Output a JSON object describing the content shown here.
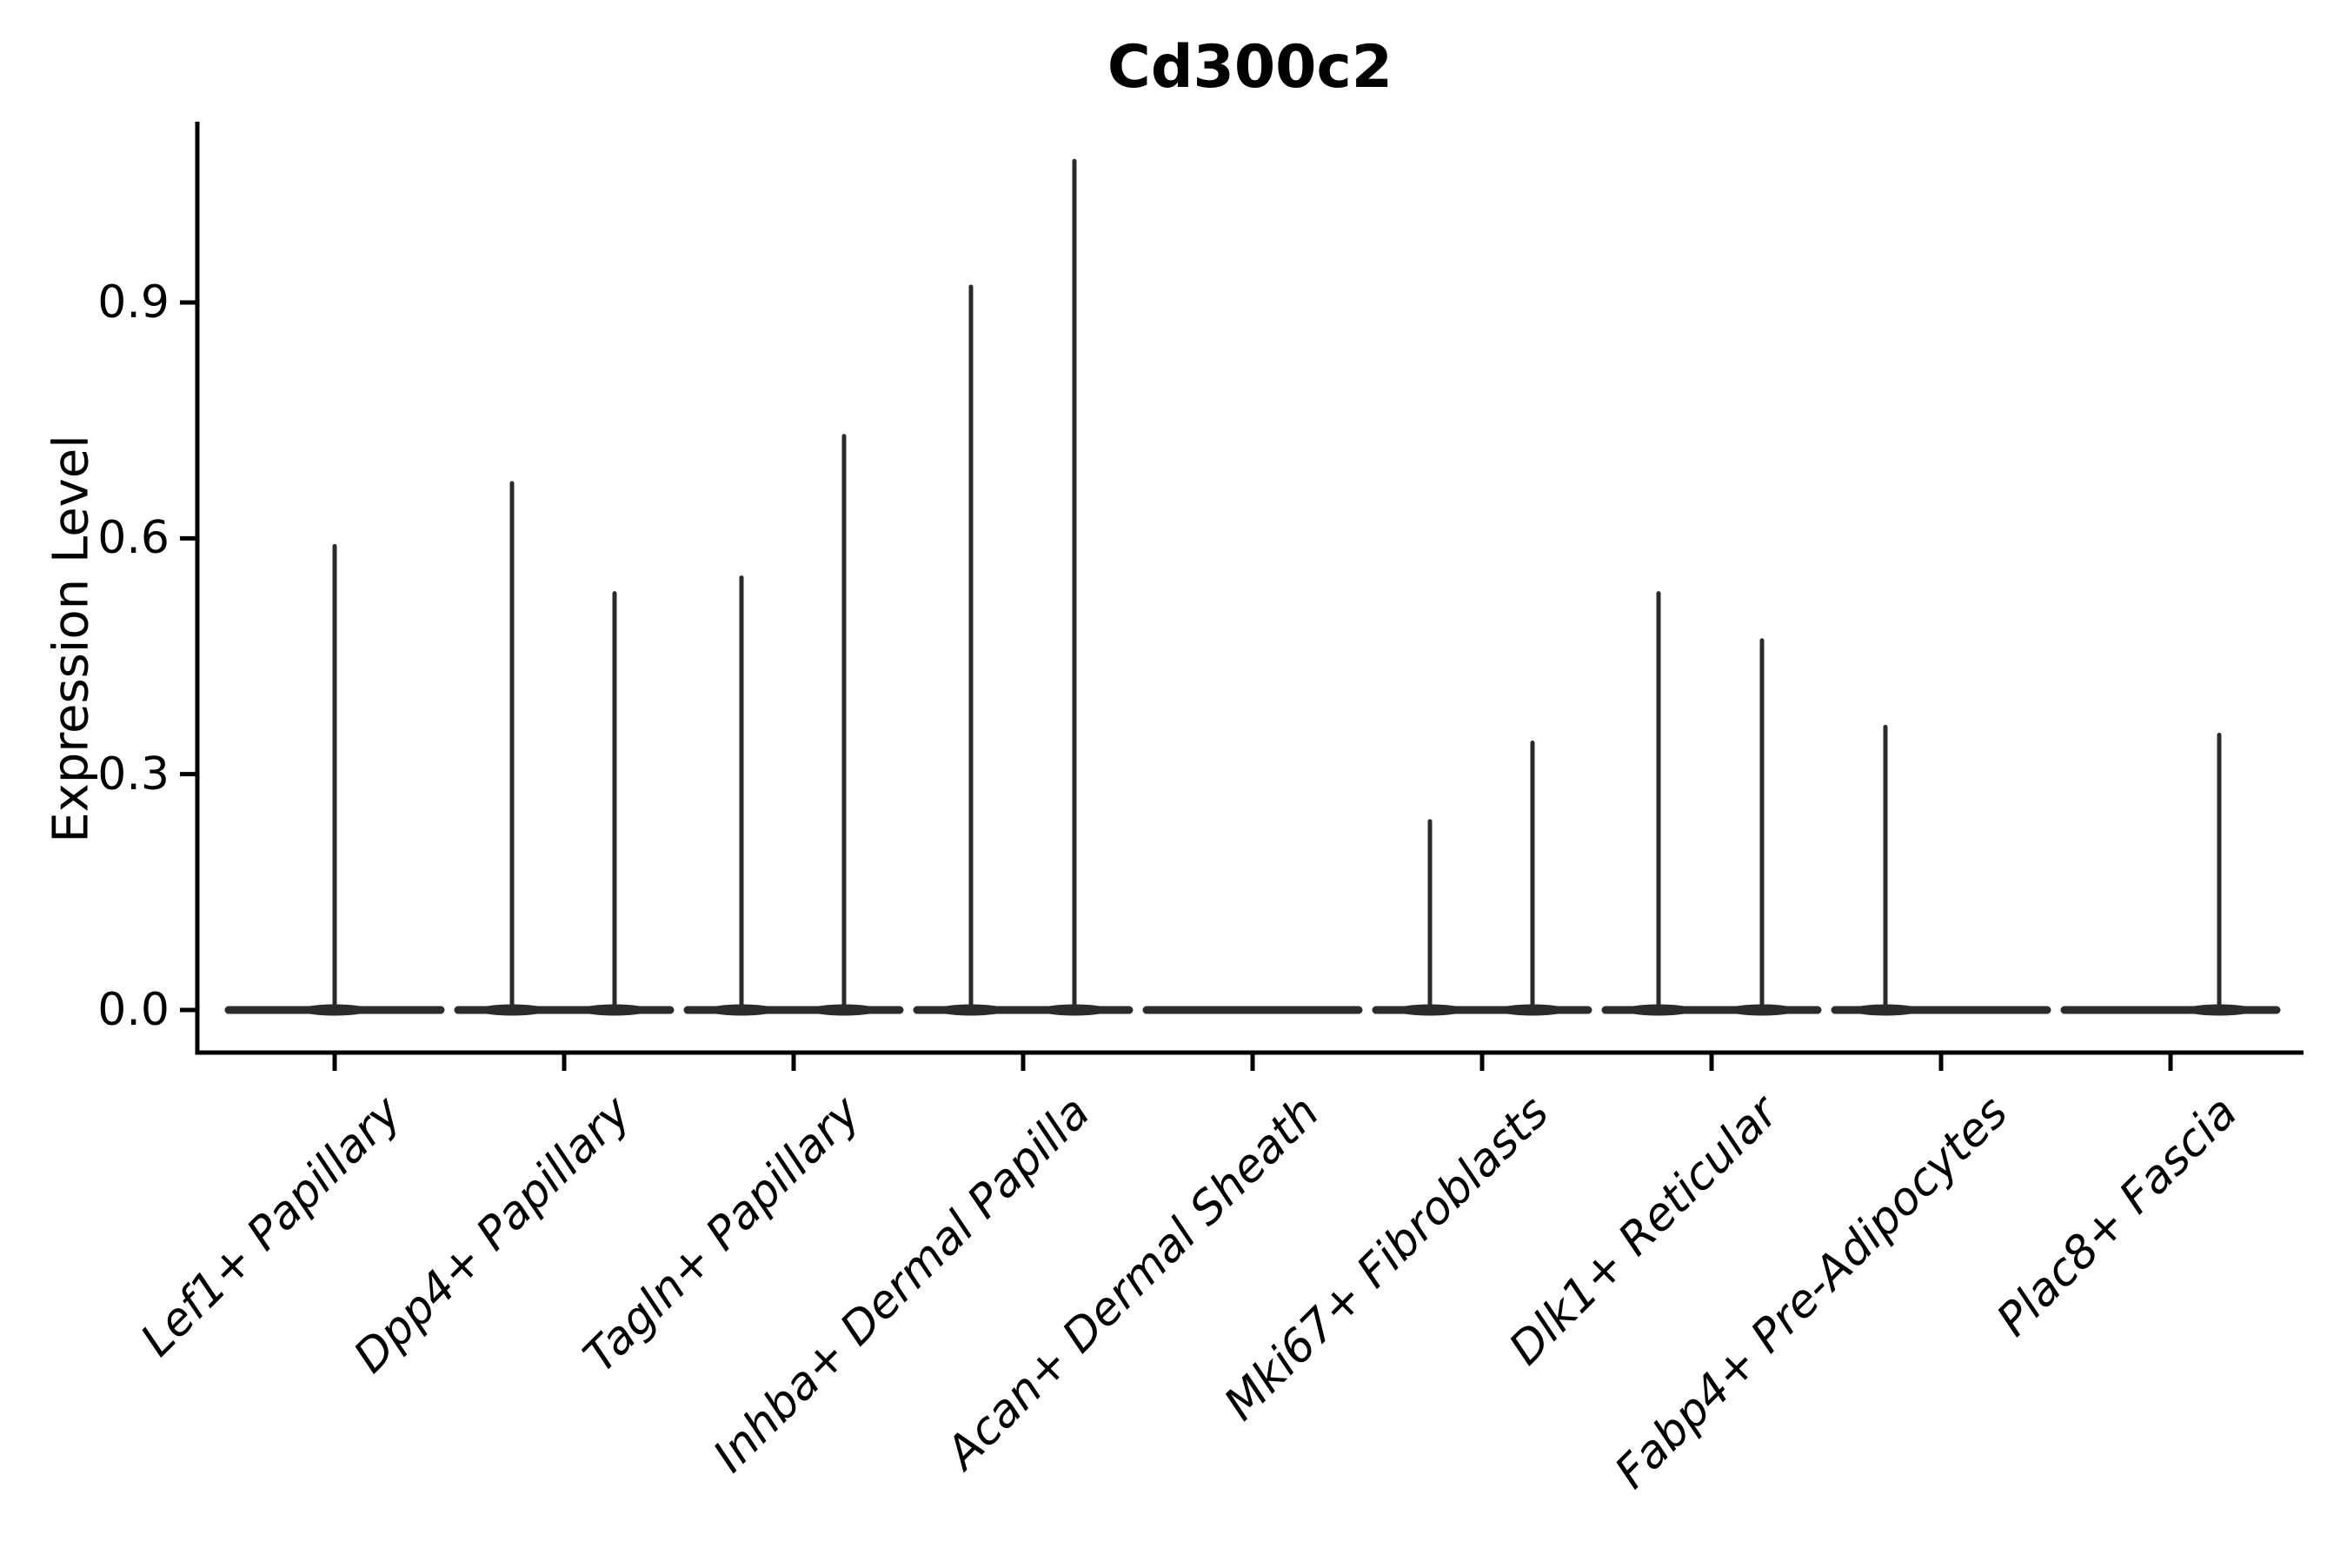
{
  "chart_data": {
    "type": "violin",
    "title": "Cd300c2",
    "xlabel": "",
    "ylabel": "Expression Level",
    "ylim": [
      -0.05,
      1.13
    ],
    "yticks": [
      0.0,
      0.3,
      0.6,
      0.9
    ],
    "ytick_labels": [
      "0.0",
      "0.3",
      "0.6",
      "0.9"
    ],
    "grid": false,
    "legend": null,
    "categories": [
      "Lef1+ Papillary",
      "Dpp4+ Papillary",
      "Tagln+ Papillary",
      "Inhba+ Dermal Papilla",
      "Acan+ Dermal Sheath",
      "Mki67+ Fibroblasts",
      "Dlk1+ Reticular",
      "Fabp4+ Pre-Adipocytes",
      "Plac8+ Fascia"
    ],
    "violins": [
      {
        "category": "Lef1+ Papillary",
        "spikes": [
          {
            "dx": 0,
            "max": 0.59
          }
        ]
      },
      {
        "category": "Dpp4+ Papillary",
        "spikes": [
          {
            "dx": -60,
            "max": 0.67
          },
          {
            "dx": 58,
            "max": 0.53
          }
        ]
      },
      {
        "category": "Tagln+ Papillary",
        "spikes": [
          {
            "dx": -60,
            "max": 0.55
          },
          {
            "dx": 58,
            "max": 0.73
          }
        ]
      },
      {
        "category": "Inhba+ Dermal Papilla",
        "spikes": [
          {
            "dx": -60,
            "max": 0.92
          },
          {
            "dx": 59,
            "max": 1.08
          }
        ]
      },
      {
        "category": "Acan+ Dermal Sheath",
        "spikes": []
      },
      {
        "category": "Mki67+ Fibroblasts",
        "spikes": [
          {
            "dx": -60,
            "max": 0.24
          },
          {
            "dx": 58,
            "max": 0.34
          }
        ]
      },
      {
        "category": "Dlk1+ Reticular",
        "spikes": [
          {
            "dx": -61,
            "max": 0.53
          },
          {
            "dx": 58,
            "max": 0.47
          }
        ]
      },
      {
        "category": "Fabp4+ Pre-Adipocytes",
        "spikes": [
          {
            "dx": -64,
            "max": 0.36
          }
        ]
      },
      {
        "category": "Plac8+ Fascia",
        "spikes": [
          {
            "dx": 56,
            "max": 0.35
          }
        ]
      }
    ],
    "style": {
      "violin_color": "#2b2b2b",
      "axis_color": "#000000",
      "text_color": "#000000",
      "background": "#ffffff"
    }
  }
}
